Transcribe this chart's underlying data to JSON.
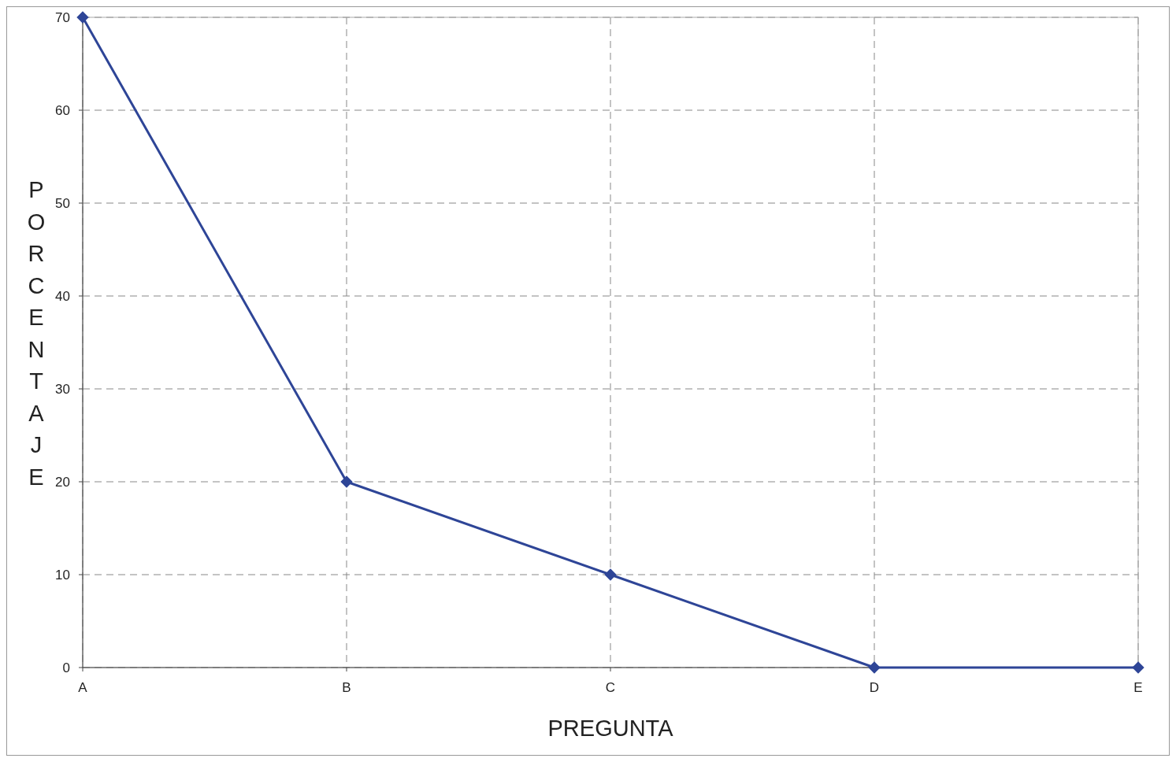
{
  "chart_data": {
    "type": "line",
    "xlabel": "PREGUNTA",
    "ylabel": "PORCENTAJE",
    "categories": [
      "A",
      "B",
      "C",
      "D",
      "E"
    ],
    "series": [
      {
        "color": "#2e4597",
        "values": [
          70,
          20,
          10,
          0,
          0
        ]
      }
    ],
    "ylim": [
      0,
      70
    ],
    "yticks": [
      0,
      10,
      20,
      30,
      40,
      50,
      60,
      70
    ],
    "grid": true,
    "marker": "diamond",
    "line_style": "solid"
  }
}
